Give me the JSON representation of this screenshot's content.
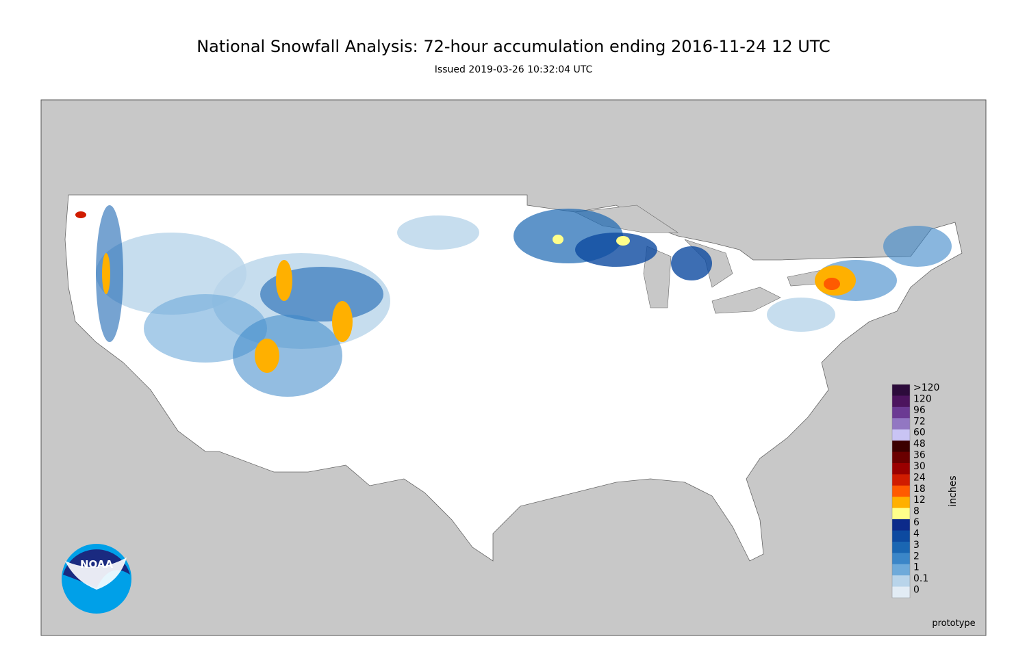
{
  "header": {
    "title": "National Snowfall Analysis: 72-hour accumulation ending 2016-11-24 12 UTC",
    "subtitle": "Issued 2019-03-26 10:32:04 UTC"
  },
  "legend": {
    "unit": "inches",
    "entries": [
      {
        "label": ">120",
        "color": "#2c0b3b"
      },
      {
        "label": "120",
        "color": "#4c145e"
      },
      {
        "label": "96",
        "color": "#6b3a93"
      },
      {
        "label": "72",
        "color": "#9277c2"
      },
      {
        "label": "60",
        "color": "#c9c4f4"
      },
      {
        "label": "48",
        "color": "#3b0000"
      },
      {
        "label": "36",
        "color": "#6a0000"
      },
      {
        "label": "30",
        "color": "#9a0000"
      },
      {
        "label": "24",
        "color": "#d01c00"
      },
      {
        "label": "18",
        "color": "#ff5a00"
      },
      {
        "label": "12",
        "color": "#ffb000"
      },
      {
        "label": "8",
        "color": "#ffff8a"
      },
      {
        "label": "6",
        "color": "#0c2a8a"
      },
      {
        "label": "4",
        "color": "#0d4aa0"
      },
      {
        "label": "3",
        "color": "#1a66b2"
      },
      {
        "label": "2",
        "color": "#3b86c8"
      },
      {
        "label": "1",
        "color": "#6eaada"
      },
      {
        "label": "0.1",
        "color": "#b8d4ea"
      },
      {
        "label": "0",
        "color": "#e2ecf5"
      }
    ]
  },
  "logo": {
    "text": "NOAA"
  },
  "footer": {
    "note": "prototype"
  }
}
